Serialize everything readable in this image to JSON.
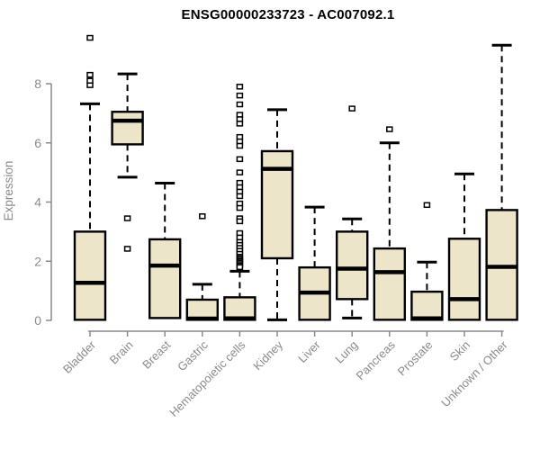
{
  "chart_data": {
    "type": "box",
    "title": "ENSG00000233723 - AC007092.1",
    "ylabel": "Expression",
    "xlabel": "",
    "yticks": [
      0,
      2,
      4,
      6,
      8
    ],
    "ylim": [
      0,
      9.7
    ],
    "grid": false,
    "legend": "none",
    "box_fill": "#ece5ca",
    "box_border": "#000000",
    "axis_color": "#8a8a8a",
    "label_color": "#8a8a8a",
    "title_color": "#000000",
    "categories": [
      "Bladder",
      "Brain",
      "Breast",
      "Gastric",
      "Hematopoietic cells",
      "Kidney",
      "Liver",
      "Lung",
      "Pancreas",
      "Prostate",
      "Skin",
      "Unknown / Other"
    ],
    "series": [
      {
        "name": "Bladder",
        "q1": 0.02,
        "median": 1.27,
        "q3": 3.0,
        "whisker_low": null,
        "whisker_high": 7.32,
        "outliers": [
          7.95,
          8.1,
          8.3,
          9.55
        ]
      },
      {
        "name": "Brain",
        "q1": 5.95,
        "median": 6.75,
        "q3": 7.05,
        "whisker_low": 4.84,
        "whisker_high": 8.33,
        "outliers": [
          3.45,
          2.42
        ]
      },
      {
        "name": "Breast",
        "q1": 0.08,
        "median": 1.85,
        "q3": 2.74,
        "whisker_low": null,
        "whisker_high": 4.64,
        "outliers": []
      },
      {
        "name": "Gastric",
        "q1": 0.02,
        "median": 0.06,
        "q3": 0.7,
        "whisker_low": null,
        "whisker_high": 1.22,
        "outliers": [
          3.52
        ]
      },
      {
        "name": "Hematopoietic cells",
        "q1": 0.02,
        "median": 0.07,
        "q3": 0.78,
        "whisker_low": null,
        "whisker_high": 1.66,
        "outliers": [
          7.9,
          7.6,
          7.3,
          6.95,
          6.8,
          6.65,
          6.2,
          6.05,
          5.9,
          5.45,
          5.0,
          4.65,
          4.5,
          4.35,
          4.2,
          3.95,
          3.8,
          3.45,
          3.35,
          2.95,
          2.8,
          2.65,
          2.55,
          2.45,
          2.35,
          2.25,
          2.15,
          2.1,
          2.05,
          2.0,
          1.95,
          1.9,
          1.85,
          1.8
        ]
      },
      {
        "name": "Kidney",
        "q1": 2.1,
        "median": 5.12,
        "q3": 5.72,
        "whisker_low": 0.02,
        "whisker_high": 7.12,
        "outliers": []
      },
      {
        "name": "Liver",
        "q1": 0.02,
        "median": 0.94,
        "q3": 1.79,
        "whisker_low": null,
        "whisker_high": 3.83,
        "outliers": []
      },
      {
        "name": "Lung",
        "q1": 0.72,
        "median": 1.75,
        "q3": 3.0,
        "whisker_low": 0.08,
        "whisker_high": 3.43,
        "outliers": [
          7.16
        ]
      },
      {
        "name": "Pancreas",
        "q1": 0.02,
        "median": 1.63,
        "q3": 2.43,
        "whisker_low": null,
        "whisker_high": 6.0,
        "outliers": [
          6.46
        ]
      },
      {
        "name": "Prostate",
        "q1": 0.02,
        "median": 0.07,
        "q3": 0.97,
        "whisker_low": null,
        "whisker_high": 1.97,
        "outliers": [
          3.9
        ]
      },
      {
        "name": "Skin",
        "q1": 0.02,
        "median": 0.72,
        "q3": 2.76,
        "whisker_low": null,
        "whisker_high": 4.95,
        "outliers": []
      },
      {
        "name": "Unknown / Other",
        "q1": 0.02,
        "median": 1.81,
        "q3": 3.73,
        "whisker_low": null,
        "whisker_high": 9.3,
        "outliers": []
      }
    ]
  }
}
